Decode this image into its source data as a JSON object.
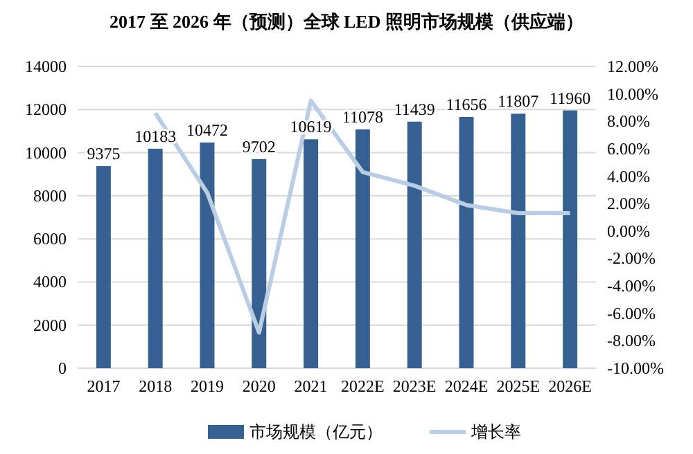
{
  "chart_data": {
    "type": "bar",
    "title": "2017 至 2026 年（预测）全球 LED 照明市场规模（供应端）",
    "categories": [
      "2017",
      "2018",
      "2019",
      "2020",
      "2021",
      "2022E",
      "2023E",
      "2024E",
      "2025E",
      "2026E"
    ],
    "series": [
      {
        "name": "市场规模（亿元）",
        "color": "#376092",
        "values": [
          9375,
          10183,
          10472,
          9702,
          10619,
          11078,
          11439,
          11656,
          11807,
          11960
        ],
        "value_labels": [
          "9375",
          "10183",
          "10472",
          "9702",
          "10619",
          "11078",
          "11439",
          "11656",
          "11807",
          "11960"
        ]
      },
      {
        "name": "增长率",
        "type": "line",
        "axis": "y2",
        "color": "#b9cde5",
        "values": [
          null,
          8.6,
          2.8,
          -7.4,
          9.5,
          4.3,
          3.3,
          1.9,
          1.3,
          1.3
        ]
      }
    ],
    "ylim": [
      0,
      14000
    ],
    "yticks": [
      0,
      2000,
      4000,
      6000,
      8000,
      10000,
      12000,
      14000
    ],
    "y2lim": [
      -10,
      12
    ],
    "y2ticks": [
      {
        "value": -10,
        "label": "-10.00%"
      },
      {
        "value": -8,
        "label": "-8.00%"
      },
      {
        "value": -6,
        "label": "-6.00%"
      },
      {
        "value": -4,
        "label": "-4.00%"
      },
      {
        "value": -2,
        "label": "-2.00%"
      },
      {
        "value": 0,
        "label": "0.00%"
      },
      {
        "value": 2,
        "label": "2.00%"
      },
      {
        "value": 4,
        "label": "4.00%"
      },
      {
        "value": 6,
        "label": "6.00%"
      },
      {
        "value": 8,
        "label": "8.00%"
      },
      {
        "value": 10,
        "label": "10.00%"
      },
      {
        "value": 12,
        "label": "12.00%"
      }
    ],
    "grid": "y",
    "legend": "bottom"
  }
}
